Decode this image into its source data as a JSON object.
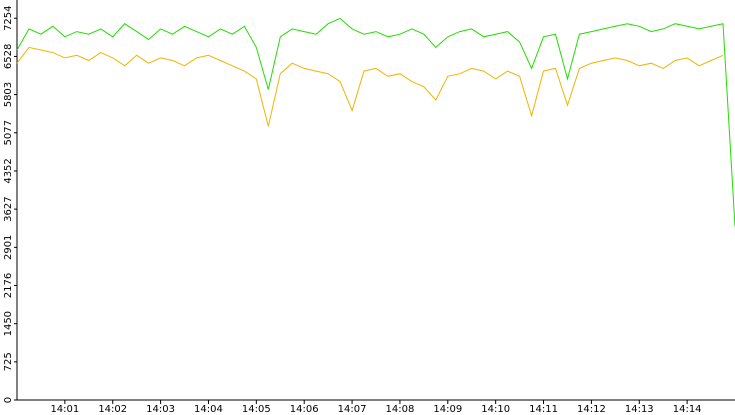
{
  "chart_data": {
    "type": "line",
    "categories": [
      null,
      null,
      null,
      null,
      "14:01",
      null,
      null,
      null,
      "14:02",
      null,
      null,
      null,
      "14:03",
      null,
      null,
      null,
      "14:04",
      null,
      null,
      null,
      "14:05",
      null,
      null,
      null,
      "14:06",
      null,
      null,
      null,
      "14:07",
      null,
      null,
      null,
      "14:08",
      null,
      null,
      null,
      "14:09",
      null,
      null,
      null,
      "14:10",
      null,
      null,
      null,
      "14:11",
      null,
      null,
      null,
      "14:12",
      null,
      null,
      null,
      "14:13",
      null,
      null,
      null,
      "14:14",
      null,
      null,
      null,
      null
    ],
    "series": [
      {
        "color": "#22dd00",
        "values": [
          6650,
          7050,
          6950,
          7100,
          6900,
          7000,
          6950,
          7050,
          6900,
          7150,
          7000,
          6850,
          7050,
          6950,
          7100,
          7000,
          6900,
          7050,
          6950,
          7100,
          6700,
          5900,
          6900,
          7050,
          7000,
          6950,
          7150,
          7250,
          7050,
          6950,
          7000,
          6900,
          6950,
          7050,
          6950,
          6700,
          6900,
          7000,
          7050,
          6900,
          6950,
          7000,
          6800,
          6300,
          6900,
          6950,
          6100,
          6950,
          7000,
          7050,
          7100,
          7150,
          7100,
          7000,
          7050,
          7150,
          7100,
          7050,
          7100,
          7150,
          3300
        ]
      },
      {
        "color": "#f0b400",
        "values": [
          6400,
          6700,
          6650,
          6600,
          6500,
          6550,
          6450,
          6600,
          6500,
          6350,
          6550,
          6400,
          6500,
          6450,
          6350,
          6500,
          6550,
          6450,
          6350,
          6250,
          6100,
          5200,
          6200,
          6400,
          6300,
          6250,
          6200,
          6050,
          5500,
          6250,
          6300,
          6150,
          6200,
          6050,
          5950,
          5700,
          6150,
          6200,
          6300,
          6250,
          6100,
          6250,
          6150,
          5400,
          6250,
          6300,
          5600,
          6300,
          6400,
          6450,
          6500,
          6450,
          6350,
          6400,
          6300,
          6450,
          6500,
          6350,
          6450,
          6550,
          null
        ]
      }
    ],
    "ylim": [
      0,
      7600
    ],
    "yticks": [
      0,
      725,
      1450,
      2176,
      2901,
      3627,
      4352,
      5077,
      5803,
      6528,
      7254
    ]
  }
}
